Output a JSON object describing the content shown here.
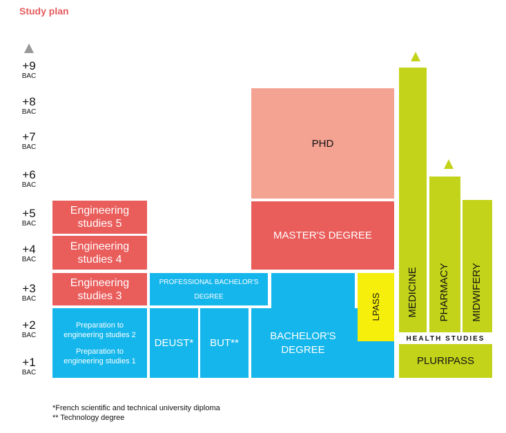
{
  "title": "Study plan",
  "levels": [
    {
      "n": "+9",
      "b": "BAC"
    },
    {
      "n": "+8",
      "b": "BAC"
    },
    {
      "n": "+7",
      "b": "BAC"
    },
    {
      "n": "+6",
      "b": "BAC"
    },
    {
      "n": "+5",
      "b": "BAC"
    },
    {
      "n": "+4",
      "b": "BAC"
    },
    {
      "n": "+3",
      "b": "BAC"
    },
    {
      "n": "+2",
      "b": "BAC"
    },
    {
      "n": "+1",
      "b": "BAC"
    }
  ],
  "engineering": {
    "eng5": "Engineering studies 5",
    "eng4": "Engineering studies 4",
    "eng3": "Engineering studies 3",
    "prep2": "Preparation to engineering studies 2",
    "prep1": "Preparation to engineering studies 1"
  },
  "professional_bachelor": "PROFESSIONAL BACHELOR'S DEGREE",
  "deust": "DEUST*",
  "but": "BUT**",
  "phd": "PHD",
  "masters": "MASTER'S DEGREE",
  "bachelors": "BACHELOR'S DEGREE",
  "lpass": "LPASS",
  "health": {
    "medicine": "MEDICINE",
    "pharmacy": "PHARMACY",
    "midwifery": "MIDWIFERY",
    "label": "HEALTH STUDIES",
    "pluripass": "PLURIPASS"
  },
  "footnotes": {
    "deust": "*French scientific and technical university diploma",
    "but": "** Technology degree"
  },
  "colors": {
    "red": "#e95d5b",
    "pink": "#f4a292",
    "blue": "#14b6ec",
    "lime": "#c3d31a",
    "yellow": "#f6ef0b",
    "title": "#e55a5b",
    "arrow_grey": "#999999"
  }
}
